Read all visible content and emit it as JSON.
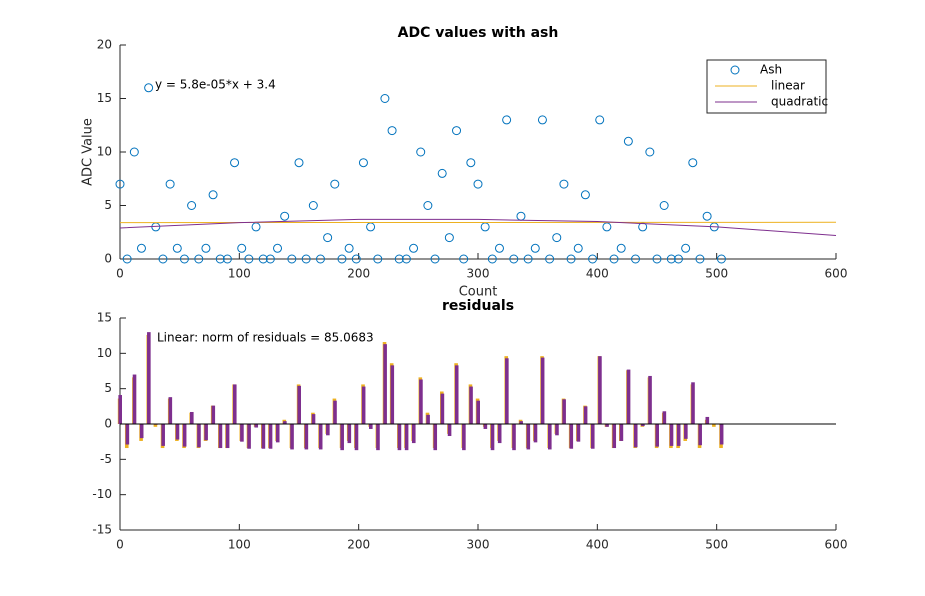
{
  "chart_data": [
    {
      "type": "scatter",
      "title": "ADC values with ash",
      "xlabel": "Count",
      "ylabel": "ADC Value",
      "annotation": "y = 5.8e-05*x + 3.4",
      "xlim": [
        0,
        600
      ],
      "xticks": [
        0,
        100,
        200,
        300,
        400,
        500,
        600
      ],
      "ylim": [
        0,
        20
      ],
      "yticks": [
        0,
        5,
        10,
        15,
        20
      ],
      "legend": "upper right",
      "series": [
        {
          "name": "Ash",
          "color": "#0072bd",
          "mode": "markers",
          "x": [
            0,
            6,
            12,
            18,
            24,
            30,
            36,
            42,
            48,
            54,
            60,
            66,
            72,
            78,
            84,
            90,
            96,
            102,
            108,
            114,
            120,
            126,
            132,
            138,
            144,
            150,
            156,
            162,
            168,
            174,
            180,
            186,
            192,
            198,
            204,
            210,
            216,
            222,
            228,
            234,
            240,
            246,
            252,
            258,
            264,
            270,
            276,
            282,
            288,
            294,
            300,
            306,
            312,
            318,
            324,
            330,
            336,
            342,
            348,
            354,
            360,
            366,
            372,
            378,
            384,
            390,
            396,
            402,
            408,
            414,
            420,
            426,
            432,
            438,
            444,
            450,
            456,
            462,
            468,
            474,
            480,
            486,
            492,
            498,
            504
          ],
          "values": [
            7,
            0,
            10,
            1,
            16,
            3,
            0,
            7,
            1,
            0,
            5,
            0,
            1,
            6,
            0,
            0,
            9,
            1,
            0,
            3,
            0,
            0,
            1,
            4,
            0,
            9,
            0,
            5,
            0,
            2,
            7,
            0,
            1,
            0,
            9,
            3,
            0,
            15,
            12,
            0,
            0,
            1,
            10,
            5,
            0,
            8,
            2,
            12,
            0,
            9,
            7,
            3,
            0,
            1,
            13,
            0,
            4,
            0,
            1,
            13,
            0,
            2,
            7,
            0,
            1,
            6,
            0,
            13,
            3,
            0,
            1,
            11,
            0,
            3,
            10,
            0,
            5,
            0,
            0,
            1,
            9,
            0,
            4,
            3,
            0
          ]
        },
        {
          "name": "linear",
          "color": "#edb120",
          "mode": "line",
          "x": [
            0,
            600
          ],
          "values": [
            3.4,
            3.43
          ]
        },
        {
          "name": "quadratic",
          "color": "#7e2f8e",
          "mode": "line",
          "x": [
            0,
            100,
            200,
            300,
            400,
            500,
            600
          ],
          "values": [
            2.9,
            3.4,
            3.7,
            3.7,
            3.5,
            3.0,
            2.2
          ]
        }
      ]
    },
    {
      "type": "bar",
      "title": "residuals",
      "annotation": "Linear: norm of residuals = 85.0683",
      "xlim": [
        0,
        600
      ],
      "xticks": [
        0,
        100,
        200,
        300,
        400,
        500,
        600
      ],
      "ylim": [
        -15,
        15
      ],
      "yticks": [
        -15,
        -10,
        -5,
        0,
        5,
        10,
        15
      ],
      "x": [
        0,
        6,
        12,
        18,
        24,
        30,
        36,
        42,
        48,
        54,
        60,
        66,
        72,
        78,
        84,
        90,
        96,
        102,
        108,
        114,
        120,
        126,
        132,
        138,
        144,
        150,
        156,
        162,
        168,
        174,
        180,
        186,
        192,
        198,
        204,
        210,
        216,
        222,
        228,
        234,
        240,
        246,
        252,
        258,
        264,
        270,
        276,
        282,
        288,
        294,
        300,
        306,
        312,
        318,
        324,
        330,
        336,
        342,
        348,
        354,
        360,
        366,
        372,
        378,
        384,
        390,
        396,
        402,
        408,
        414,
        420,
        426,
        432,
        438,
        444,
        450,
        456,
        462,
        468,
        474,
        480,
        486,
        492,
        498,
        504
      ],
      "series": [
        {
          "color": "#edb120",
          "values": [
            3.6,
            -3.4,
            6.6,
            -2.4,
            12.6,
            -0.4,
            -3.4,
            3.6,
            -2.4,
            -3.4,
            1.6,
            -3.4,
            -2.4,
            2.6,
            -3.4,
            -3.4,
            5.6,
            -2.4,
            -3.4,
            -0.4,
            -3.4,
            -3.4,
            -2.4,
            0.6,
            -3.4,
            5.6,
            -3.4,
            1.6,
            -3.4,
            -1.4,
            3.6,
            -3.4,
            -2.4,
            -3.4,
            5.6,
            -0.4,
            -3.4,
            11.6,
            8.6,
            -3.4,
            -3.4,
            -2.4,
            6.6,
            1.6,
            -3.4,
            4.6,
            -1.4,
            8.6,
            -3.4,
            5.6,
            3.6,
            -0.4,
            -3.4,
            -2.4,
            9.6,
            -3.4,
            0.6,
            -3.4,
            -2.4,
            9.6,
            -3.4,
            -1.4,
            3.6,
            -3.4,
            -2.4,
            2.6,
            -3.4,
            9.6,
            -0.4,
            -3.4,
            -2.4,
            7.6,
            -3.4,
            -0.4,
            6.6,
            -3.4,
            1.6,
            -3.4,
            -3.4,
            -2.4,
            5.6,
            -3.4,
            0.6,
            -0.4,
            -3.4
          ]
        },
        {
          "color": "#7e2f8e",
          "values": [
            4.1,
            -2.9,
            7.0,
            -2.0,
            13.0,
            -0.1,
            -3.1,
            3.8,
            -2.2,
            -3.2,
            1.7,
            -3.3,
            -2.3,
            2.6,
            -3.4,
            -3.4,
            5.6,
            -2.5,
            -3.5,
            -0.5,
            -3.5,
            -3.5,
            -2.6,
            0.4,
            -3.6,
            5.4,
            -3.6,
            1.4,
            -3.6,
            -1.6,
            3.3,
            -3.7,
            -2.7,
            -3.7,
            5.3,
            -0.7,
            -3.7,
            11.3,
            8.3,
            -3.7,
            -3.7,
            -2.7,
            6.3,
            1.3,
            -3.7,
            4.3,
            -1.7,
            8.3,
            -3.7,
            5.3,
            3.3,
            -0.7,
            -3.7,
            -2.7,
            9.3,
            -3.7,
            0.4,
            -3.6,
            -2.6,
            9.4,
            -3.6,
            -1.6,
            3.5,
            -3.5,
            -2.5,
            2.5,
            -3.5,
            9.6,
            -0.4,
            -3.4,
            -2.4,
            7.7,
            -3.3,
            -0.3,
            6.8,
            -3.2,
            1.8,
            -3.1,
            -3.1,
            -2.1,
            5.9,
            -3.0,
            1.0,
            0.0,
            -2.9
          ]
        }
      ]
    }
  ]
}
